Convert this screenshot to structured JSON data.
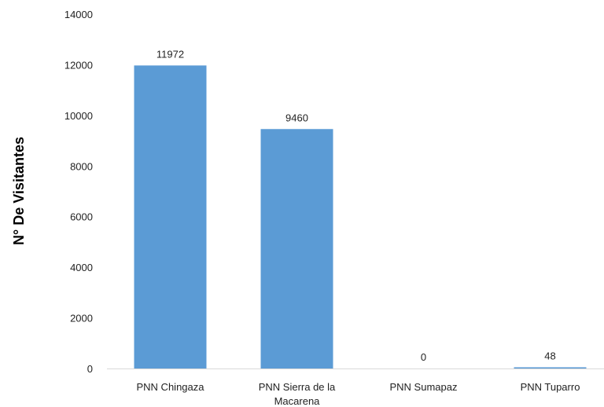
{
  "chart_data": {
    "type": "bar",
    "categories": [
      "PNN Chingaza",
      "PNN Sierra de la Macarena",
      "PNN Sumapaz",
      "PNN Tuparro"
    ],
    "category_lines": [
      [
        "PNN Chingaza"
      ],
      [
        "PNN Sierra de la",
        "Macarena"
      ],
      [
        "PNN Sumapaz"
      ],
      [
        "PNN Tuparro"
      ]
    ],
    "values": [
      11972,
      9460,
      0,
      48
    ],
    "data_labels": [
      "11972",
      "9460",
      "0",
      "48"
    ],
    "ylabel": "N° De Visitantes",
    "xlabel": "",
    "ylim": [
      0,
      14000
    ],
    "yticks": [
      0,
      2000,
      4000,
      6000,
      8000,
      10000,
      12000,
      14000
    ],
    "grid": false,
    "colors": {
      "bar": "#5b9bd5",
      "axis": "#d9d9d9",
      "text": "#222222"
    }
  }
}
